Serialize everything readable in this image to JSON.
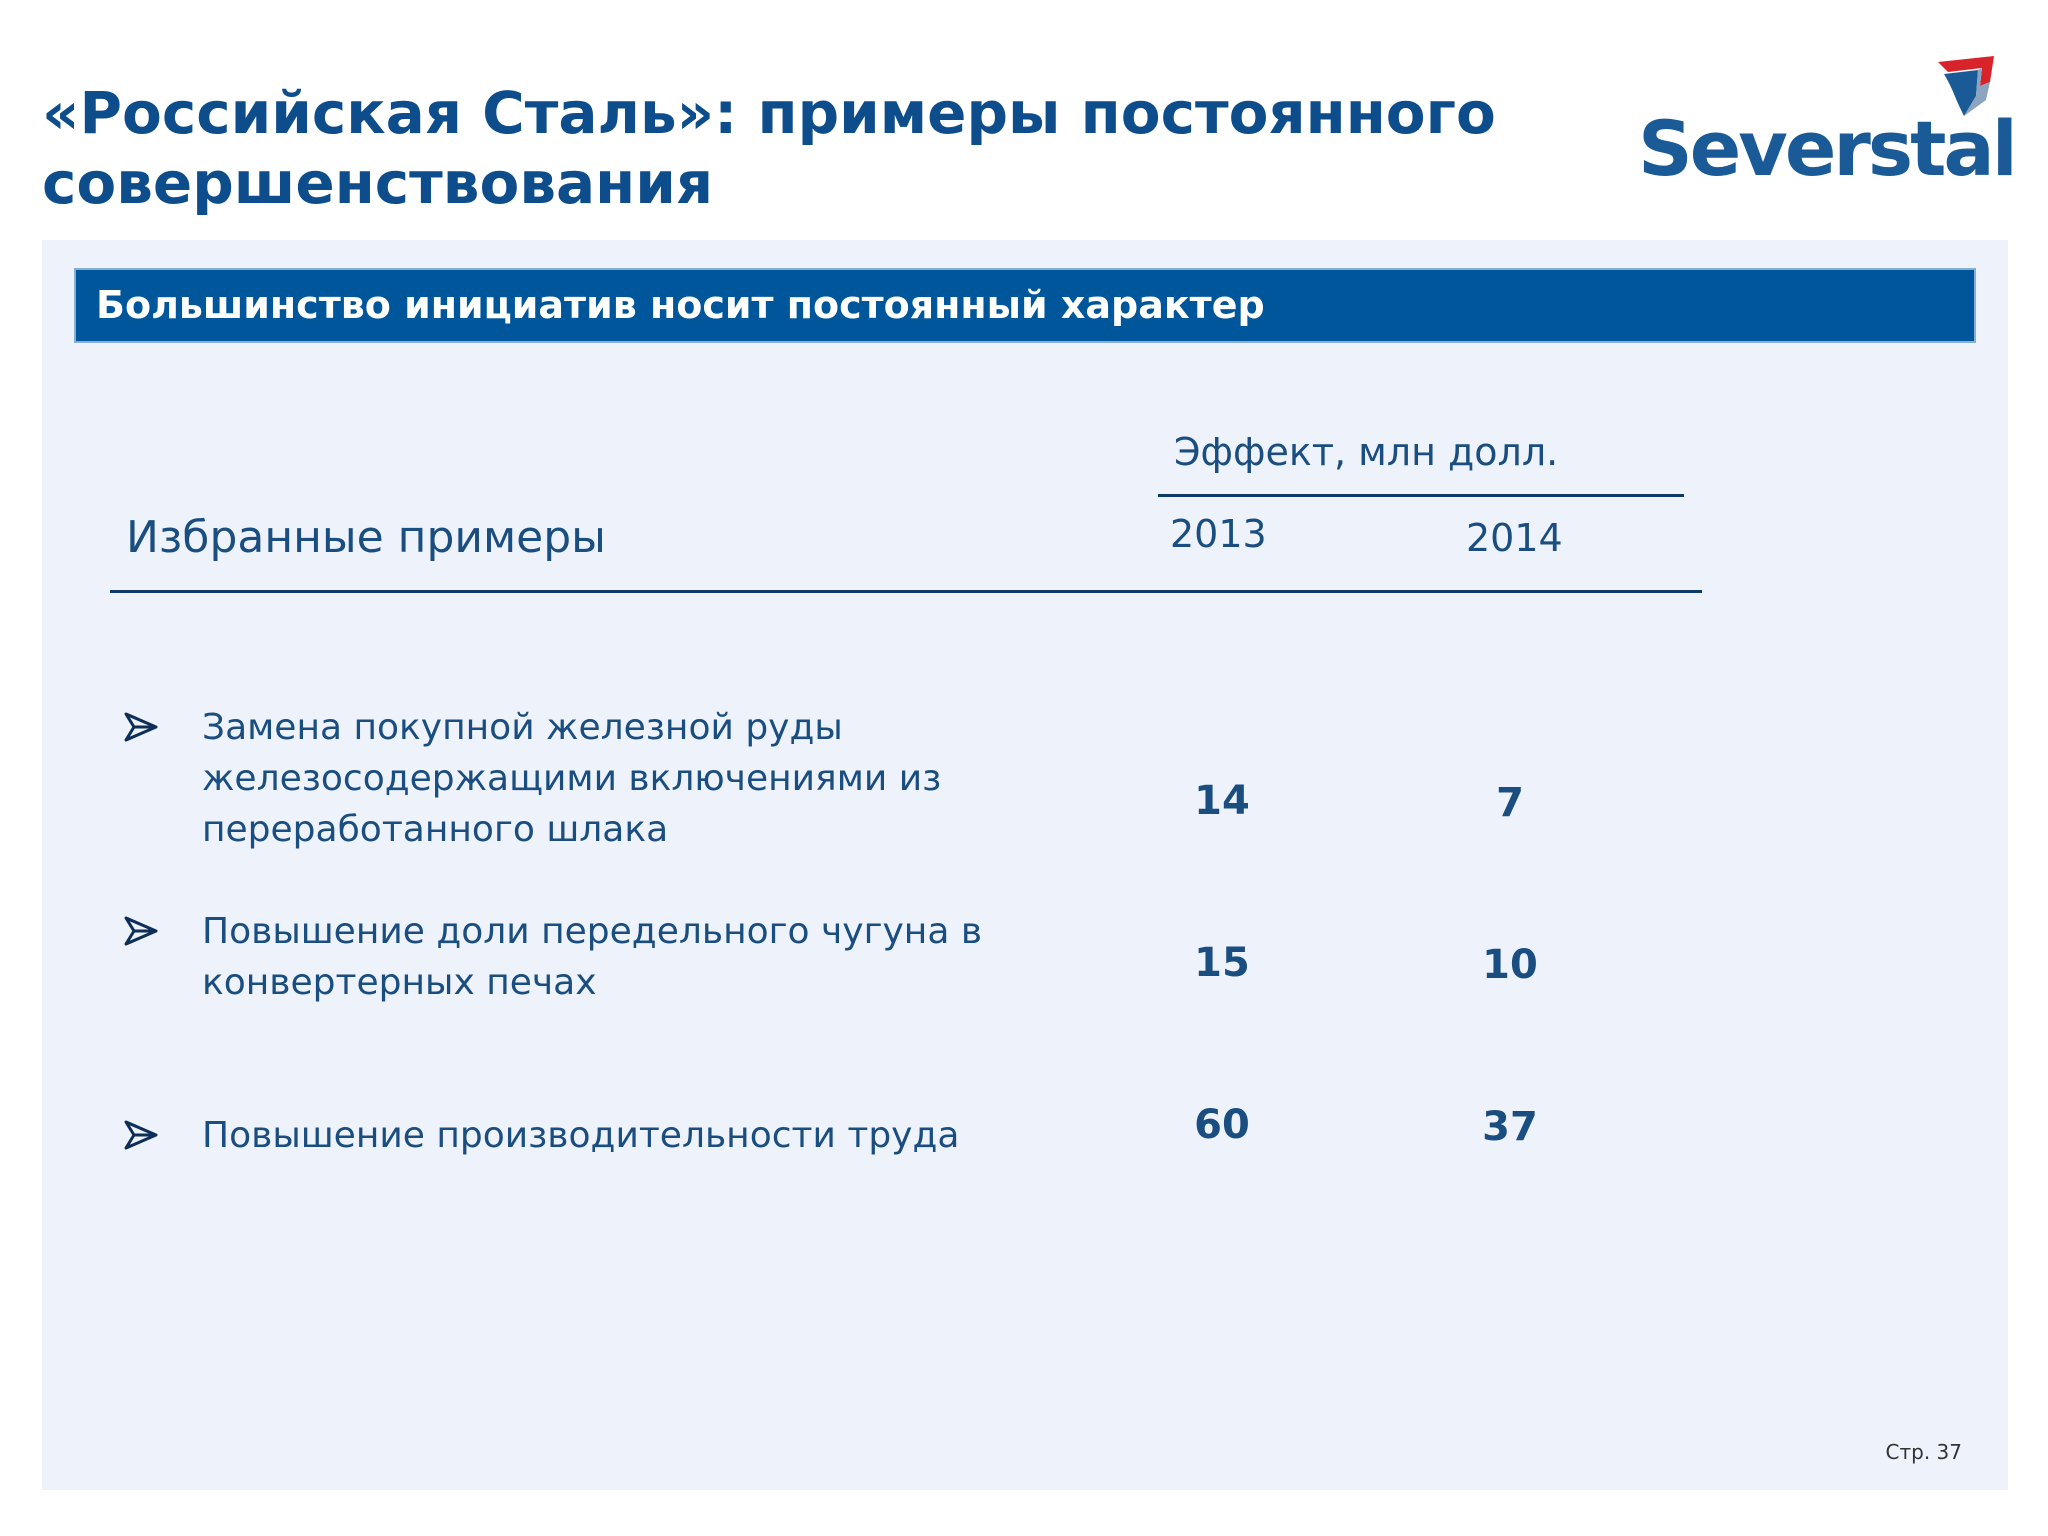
{
  "title": "«Российская Сталь»: примеры постоянного совершенствования",
  "logo": {
    "text": "Severstal",
    "icon": "severstal-logo-icon",
    "colors": {
      "text": "#1a5a96",
      "red": "#d8232a",
      "blue": "#1a5a96"
    }
  },
  "banner": {
    "text": "Большинство инициатив носит постоянный характер",
    "color": "#00569b"
  },
  "table": {
    "effect_label": "Эффект, млн долл.",
    "column_label": "Избранные примеры",
    "years": [
      "2013",
      "2014"
    ],
    "rows": [
      {
        "text": "Замена покупной железной руды железосодержащими включениями из переработанного шлака",
        "v2013": "14",
        "v2014": "7"
      },
      {
        "text": "Повышение доли передельного чугуна в конвертерных печах",
        "v2013": "15",
        "v2014": "10"
      },
      {
        "text": "Повышение производительности труда",
        "v2013": "60",
        "v2014": "37"
      }
    ]
  },
  "page_number": "Стр. 37",
  "colors": {
    "title": "#0e4d8c",
    "text": "#1a4d80",
    "panel": "#eef2fa"
  }
}
